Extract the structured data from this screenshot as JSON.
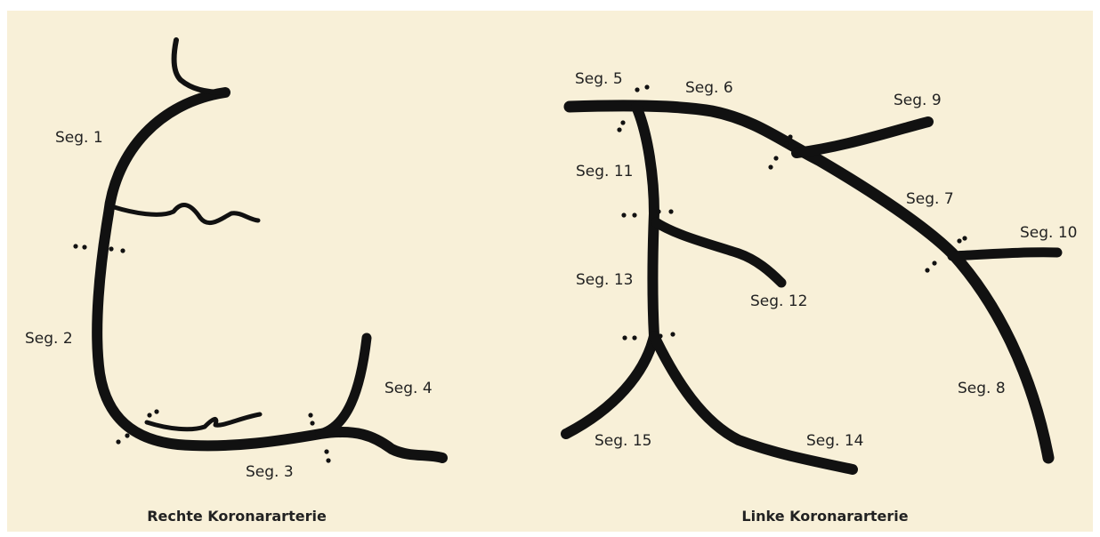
{
  "diagrams": [
    {
      "title": "Rechte Koronararterie",
      "segments": [
        "Seg. 1",
        "Seg. 2",
        "Seg. 3",
        "Seg. 4"
      ]
    },
    {
      "title": "Linke Koronararterie",
      "segments": [
        "Seg. 5",
        "Seg. 6",
        "Seg. 7",
        "Seg. 8",
        "Seg. 9",
        "Seg. 10",
        "Seg. 11",
        "Seg. 12",
        "Seg. 13",
        "Seg. 14",
        "Seg. 15"
      ]
    }
  ]
}
